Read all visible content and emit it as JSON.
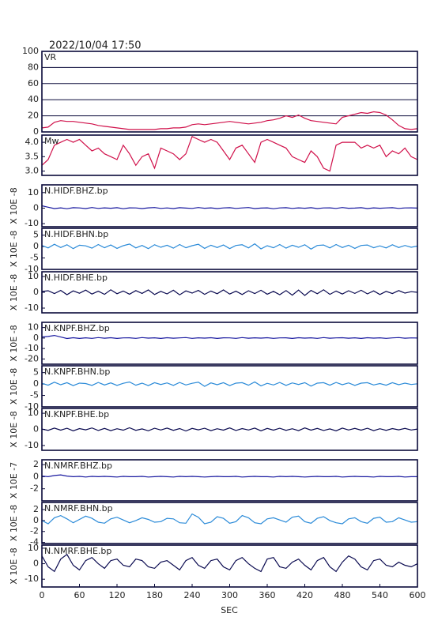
{
  "chart_data": {
    "type": "line",
    "title": "2022/10/04  17:50",
    "xlabel": "SEC",
    "x": [
      0,
      10,
      20,
      30,
      40,
      50,
      60,
      70,
      80,
      90,
      100,
      110,
      120,
      130,
      140,
      150,
      160,
      170,
      180,
      190,
      200,
      210,
      220,
      230,
      240,
      250,
      260,
      270,
      280,
      290,
      300,
      310,
      320,
      330,
      340,
      350,
      360,
      370,
      380,
      390,
      400,
      410,
      420,
      430,
      440,
      450,
      460,
      470,
      480,
      490,
      500,
      510,
      520,
      530,
      540,
      550,
      560,
      570,
      580,
      590,
      600
    ],
    "xlim": [
      0,
      600
    ],
    "xticks": [
      0,
      60,
      120,
      180,
      240,
      300,
      360,
      420,
      480,
      540,
      600
    ],
    "panels": [
      {
        "label": "VR",
        "ylim": [
          0,
          100
        ],
        "yticks": [
          0,
          20,
          40,
          60,
          80,
          100
        ],
        "grid": true,
        "color": "#d0104a",
        "values": [
          5,
          6,
          12,
          14,
          13,
          13,
          12,
          11,
          10,
          8,
          7,
          6,
          5,
          4,
          3,
          3,
          3,
          3,
          3,
          4,
          4,
          5,
          5,
          6,
          9,
          10,
          9,
          10,
          11,
          12,
          13,
          12,
          11,
          10,
          11,
          12,
          14,
          15,
          17,
          20,
          18,
          21,
          17,
          14,
          13,
          12,
          11,
          10,
          18,
          20,
          22,
          24,
          23,
          25,
          24,
          21,
          15,
          8,
          4,
          3,
          4
        ]
      },
      {
        "label": "Mw",
        "ylim": [
          2.85,
          4.25
        ],
        "yticks": [
          {
            "value": 3,
            "label": "3.0"
          },
          3.5,
          {
            "value": 4,
            "label": "4.0"
          }
        ],
        "grid": false,
        "color": "#d0104a",
        "values": [
          3.2,
          3.4,
          3.9,
          4.0,
          4.1,
          4.0,
          4.1,
          3.9,
          3.7,
          3.8,
          3.6,
          3.5,
          3.4,
          3.9,
          3.6,
          3.2,
          3.5,
          3.6,
          3.1,
          3.8,
          3.7,
          3.6,
          3.4,
          3.6,
          4.2,
          4.1,
          4.0,
          4.1,
          4.0,
          3.7,
          3.4,
          3.8,
          3.9,
          3.6,
          3.3,
          4.0,
          4.1,
          4.0,
          3.9,
          3.8,
          3.5,
          3.4,
          3.3,
          3.7,
          3.5,
          3.1,
          3.0,
          3.9,
          4.0,
          4.0,
          4.0,
          3.8,
          3.9,
          3.8,
          3.9,
          3.5,
          3.7,
          3.6,
          3.8,
          3.5,
          3.4
        ]
      },
      {
        "label": "N.HIDF.BHZ.bp",
        "ylabel": "X 10E -8",
        "ylim": [
          -12,
          15
        ],
        "yticks": [
          -10,
          0,
          10
        ],
        "grid": false,
        "color": "#1a1aa0",
        "values": [
          1.5,
          0.6,
          -0.3,
          0.2,
          -0.4,
          0.3,
          0.1,
          -0.3,
          0.4,
          -0.2,
          0.2,
          -0.1,
          0.3,
          -0.4,
          0.2,
          0.1,
          -0.3,
          0.2,
          0.4,
          -0.2,
          0.1,
          -0.3,
          0.3,
          0.0,
          -0.2,
          0.4,
          -0.1,
          0.2,
          -0.3,
          0.1,
          0.3,
          -0.2,
          0.1,
          0.4,
          -0.3,
          0.0,
          0.2,
          -0.4,
          0.1,
          0.3,
          -0.2,
          0.2,
          -0.1,
          0.3,
          -0.3,
          0.1,
          0.2,
          -0.2,
          0.4,
          -0.1,
          0.0,
          0.3,
          -0.3,
          0.2,
          -0.1,
          0.1,
          0.3,
          -0.2,
          0.1,
          0.2,
          0.0
        ]
      },
      {
        "label": "N.HIDF.BHN.bp",
        "ylabel": "X 10E -8",
        "ylim": [
          -10,
          8
        ],
        "yticks": [
          -10,
          -5,
          0,
          5
        ],
        "grid": false,
        "color": "#2a8ad8",
        "values": [
          0.5,
          -0.6,
          1.0,
          -0.4,
          0.8,
          -0.9,
          0.6,
          0.3,
          -0.7,
          0.9,
          -0.5,
          0.7,
          -0.8,
          0.4,
          1.1,
          -0.6,
          0.5,
          -0.9,
          0.8,
          -0.3,
          0.6,
          -0.7,
          0.9,
          -0.5,
          0.4,
          1.0,
          -0.8,
          0.6,
          -0.4,
          0.7,
          -0.9,
          0.5,
          0.8,
          -0.6,
          1.2,
          -1.0,
          0.4,
          -0.5,
          0.9,
          -0.7,
          0.6,
          -0.3,
          0.8,
          -1.1,
          0.5,
          0.7,
          -0.6,
          0.9,
          -0.4,
          0.6,
          -0.8,
          0.5,
          0.7,
          -0.5,
          0.3,
          -0.6,
          0.8,
          -0.4,
          0.5,
          -0.3,
          0.2
        ]
      },
      {
        "label": "N.HIDF.BHE.bp",
        "ylabel": "X 10E -8",
        "ylim": [
          -13,
          13
        ],
        "yticks": [
          -10,
          0,
          10
        ],
        "grid": false,
        "color": "#0a0a50",
        "values": [
          0.5,
          1.0,
          -0.8,
          1.2,
          -1.5,
          0.9,
          -0.6,
          1.4,
          -1.1,
          0.7,
          -1.3,
          1.6,
          -0.9,
          0.8,
          -1.2,
          1.1,
          -0.7,
          1.5,
          -1.4,
          0.6,
          -1.0,
          1.3,
          -1.6,
          0.9,
          -0.5,
          1.2,
          -1.3,
          0.8,
          -0.9,
          1.5,
          -1.1,
          0.7,
          -1.4,
          1.0,
          -0.8,
          1.3,
          -1.2,
          0.6,
          -1.5,
          1.1,
          -1.8,
          1.4,
          -2.0,
          1.2,
          -0.9,
          1.6,
          -1.3,
          0.8,
          -1.1,
          1.0,
          -0.7,
          1.3,
          -1.0,
          0.9,
          -1.4,
          0.6,
          -0.8,
          1.1,
          -0.5,
          0.4,
          0.0
        ]
      },
      {
        "label": "N.KNPF.BHZ.bp",
        "ylabel": "X 10E -8",
        "ylim": [
          -25,
          15
        ],
        "yticks": [
          -20,
          -10,
          0,
          10
        ],
        "grid": false,
        "color": "#1a1aa0",
        "values": [
          1.0,
          1.5,
          2.5,
          1.0,
          -0.5,
          0.3,
          -0.4,
          0.2,
          -0.3,
          0.4,
          -0.2,
          0.3,
          -0.4,
          0.1,
          0.2,
          -0.3,
          0.4,
          -0.1,
          0.2,
          -0.4,
          0.3,
          -0.2,
          0.1,
          0.4,
          -0.3,
          0.2,
          -0.1,
          0.3,
          -0.4,
          0.2,
          0.1,
          -0.3,
          0.4,
          -0.2,
          0.2,
          -0.1,
          0.3,
          -0.3,
          0.1,
          0.2,
          -0.4,
          0.3,
          -0.1,
          0.2,
          -0.3,
          0.4,
          -0.2,
          0.1,
          0.3,
          -0.2,
          0.2,
          -0.4,
          0.3,
          -0.1,
          0.2,
          -0.3,
          0.1,
          0.4,
          -0.2,
          0.1,
          0.0
        ]
      },
      {
        "label": "N.KNPF.BHN.bp",
        "ylabel": "X 10E -8",
        "ylim": [
          -10,
          8
        ],
        "yticks": [
          -10,
          -5,
          0,
          5
        ],
        "grid": false,
        "color": "#2a8ad8",
        "values": [
          0.3,
          -0.5,
          0.8,
          -0.3,
          0.6,
          -0.7,
          0.4,
          0.2,
          -0.6,
          0.7,
          -0.4,
          0.5,
          -0.6,
          0.3,
          0.9,
          -0.5,
          0.4,
          -0.7,
          0.6,
          -0.2,
          0.5,
          -0.6,
          0.7,
          -0.4,
          0.3,
          0.8,
          -1.0,
          0.5,
          -0.3,
          0.6,
          -0.7,
          0.4,
          0.6,
          -0.5,
          0.9,
          -0.8,
          0.3,
          -0.4,
          0.7,
          -0.6,
          0.5,
          -0.2,
          0.6,
          -0.9,
          0.4,
          0.6,
          -0.5,
          0.7,
          -0.3,
          0.5,
          -0.6,
          0.4,
          0.6,
          -0.4,
          0.2,
          -0.5,
          0.6,
          -0.3,
          0.4,
          -0.2,
          0.1
        ]
      },
      {
        "label": "N.KNPF.BHE.bp",
        "ylabel": "X 10E -8",
        "ylim": [
          -13,
          13
        ],
        "yticks": [
          -10,
          0,
          10
        ],
        "grid": false,
        "color": "#0a0a50",
        "values": [
          0.2,
          -0.6,
          0.8,
          -0.5,
          0.7,
          -0.9,
          0.5,
          -0.3,
          0.9,
          -0.7,
          0.6,
          -0.8,
          0.4,
          -0.5,
          1.0,
          -0.6,
          0.3,
          -0.9,
          0.7,
          -0.4,
          0.8,
          -0.6,
          0.5,
          -1.0,
          0.6,
          -0.3,
          0.7,
          -0.8,
          0.4,
          -0.5,
          0.9,
          -0.7,
          0.5,
          -0.4,
          0.8,
          -0.9,
          0.6,
          -0.5,
          0.7,
          -0.6,
          0.4,
          -0.8,
          0.9,
          -0.5,
          0.6,
          -0.7,
          0.3,
          -0.9,
          0.8,
          -0.4,
          0.6,
          -0.5,
          0.7,
          -0.8,
          0.4,
          -0.6,
          0.5,
          -0.3,
          0.6,
          -0.4,
          0.2
        ]
      },
      {
        "label": "N.NMRF.BHZ.bp",
        "ylabel": "X 10E -7",
        "ylim": [
          -4,
          2.8
        ],
        "yticks": [
          -2,
          0,
          2
        ],
        "grid": false,
        "color": "#1a1aa0",
        "values": [
          0.1,
          0.0,
          0.2,
          0.3,
          0.1,
          0.0,
          0.05,
          -0.05,
          0.05,
          0.0,
          0.05,
          0.0,
          -0.05,
          0.05,
          0.0,
          0.0,
          0.05,
          -0.05,
          0.0,
          0.05,
          0.0,
          -0.05,
          0.05,
          0.0,
          0.05,
          0.0,
          -0.05,
          0.0,
          0.05,
          0.0,
          0.0,
          0.05,
          -0.05,
          0.0,
          0.05,
          0.0,
          0.0,
          -0.05,
          0.05,
          0.0,
          0.05,
          0.0,
          -0.05,
          0.0,
          0.05,
          0.0,
          0.0,
          0.05,
          -0.05,
          0.0,
          0.05,
          0.0,
          0.0,
          -0.05,
          0.05,
          0.0,
          0.0,
          0.05,
          -0.05,
          0.0,
          0.0
        ]
      },
      {
        "label": "N.NMRF.BHN.bp",
        "ylabel": "X 10E -8",
        "ylim": [
          -4.2,
          3.3
        ],
        "yticks": [
          -4,
          -2,
          0,
          2
        ],
        "grid": false,
        "color": "#2a8ad8",
        "values": [
          0.0,
          -0.6,
          0.5,
          0.9,
          0.3,
          -0.4,
          0.2,
          0.8,
          0.4,
          -0.3,
          -0.5,
          0.3,
          0.6,
          0.1,
          -0.4,
          0.0,
          0.5,
          0.2,
          -0.3,
          -0.2,
          0.4,
          0.3,
          -0.4,
          -0.5,
          1.2,
          0.6,
          -0.6,
          -0.3,
          0.7,
          0.4,
          -0.5,
          -0.2,
          0.9,
          0.5,
          -0.4,
          -0.6,
          0.3,
          0.5,
          0.1,
          -0.3,
          0.6,
          0.8,
          -0.2,
          -0.5,
          0.4,
          0.7,
          0.0,
          -0.4,
          -0.6,
          0.3,
          0.5,
          -0.2,
          -0.5,
          0.4,
          0.6,
          -0.3,
          -0.2,
          0.5,
          0.1,
          -0.3,
          -0.2
        ]
      },
      {
        "label": "N.NMRF.BHE.bp",
        "ylabel": "X 10E -8",
        "ylim": [
          -15,
          12
        ],
        "yticks": [
          -10,
          0,
          10
        ],
        "grid": false,
        "color": "#0a0a50",
        "values": [
          5,
          -2,
          -5,
          3,
          6,
          -1,
          -4,
          2,
          4,
          0,
          -3,
          2,
          3,
          -1,
          -2,
          3,
          2,
          -2,
          -3,
          1,
          2,
          -1,
          -4,
          2,
          4,
          -1,
          -3,
          2,
          3,
          -2,
          -4,
          2,
          4,
          0,
          -3,
          -5,
          3,
          4,
          -2,
          -3,
          1,
          3,
          -1,
          -4,
          2,
          4,
          -2,
          -5,
          1,
          5,
          3,
          -2,
          -4,
          2,
          3,
          -1,
          -2,
          1,
          -1,
          -2,
          0
        ]
      }
    ]
  }
}
